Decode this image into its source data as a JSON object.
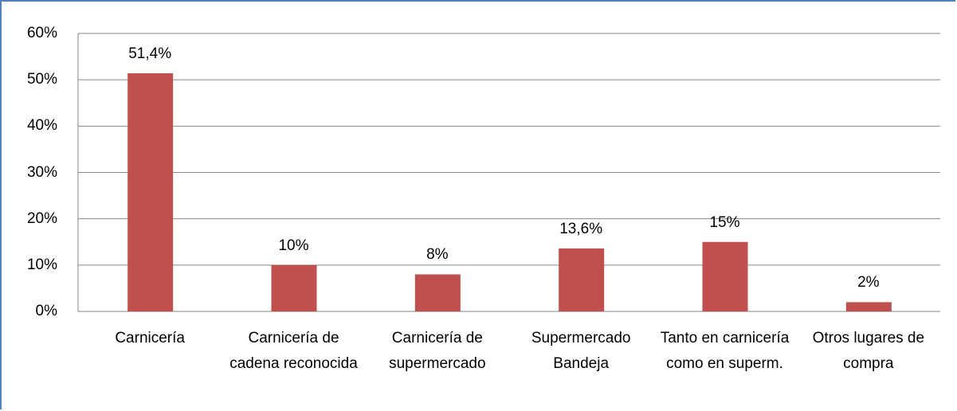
{
  "chart_data": {
    "type": "bar",
    "categories": [
      "Carnicería",
      "Carnicería de cadena reconocida",
      "Carnicería de supermercado",
      "Supermercado Bandeja",
      "Tanto en carnicería como en superm.",
      "Otros lugares de compra"
    ],
    "values": [
      51.4,
      10,
      8,
      13.6,
      15,
      2
    ],
    "value_labels": [
      "51,4%",
      "10%",
      "8%",
      "13,6%",
      "15%",
      "2%"
    ],
    "color": "#c0504d",
    "ylim": [
      0,
      60
    ],
    "yticks": [
      {
        "value": 0,
        "label": "0%"
      },
      {
        "value": 10,
        "label": "10%"
      },
      {
        "value": 20,
        "label": "20%"
      },
      {
        "value": 30,
        "label": "30%"
      },
      {
        "value": 40,
        "label": "40%"
      },
      {
        "value": 50,
        "label": "50%"
      },
      {
        "value": 60,
        "label": "60%"
      }
    ],
    "grid": true
  }
}
